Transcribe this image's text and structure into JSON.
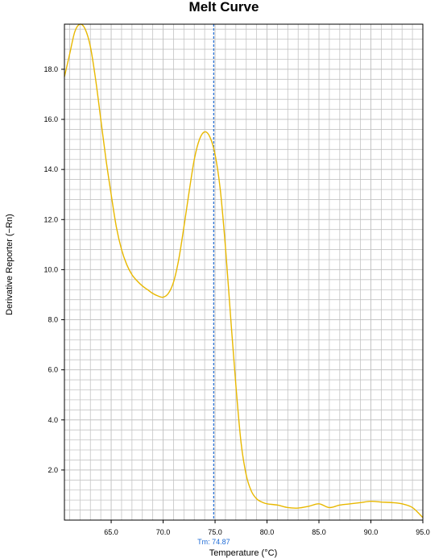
{
  "chart_data": {
    "type": "line",
    "title": "Melt Curve",
    "xlabel": "Temperature (°C)",
    "ylabel": "Derivative Reporter (−Rn)",
    "xlim": [
      60.5,
      95
    ],
    "ylim": [
      0,
      19.8
    ],
    "x_ticks": [
      "65.0",
      "70.0",
      "75.0",
      "80.0",
      "85.0",
      "90.0",
      "95.0"
    ],
    "y_ticks": [
      "2.0",
      "4.0",
      "6.0",
      "8.0",
      "10.0",
      "12.0",
      "14.0",
      "16.0",
      "18.0"
    ],
    "grid": true,
    "marker_line": {
      "x": 74.87,
      "label": "Tm: 74.87"
    },
    "colors": {
      "curve": "#e8b800",
      "marker": "#1e6bd6",
      "grid": "#c4c4c4",
      "plot_bg": "#ffffff"
    },
    "series": [
      {
        "x": [
          60.5,
          61.0,
          61.5,
          62.0,
          62.5,
          63.0,
          63.5,
          64.0,
          64.5,
          65.0,
          65.5,
          66.0,
          66.5,
          67.0,
          67.5,
          68.0,
          68.5,
          69.0,
          69.5,
          70.0,
          70.5,
          71.0,
          71.5,
          72.0,
          72.5,
          73.0,
          73.5,
          74.0,
          74.5,
          75.0,
          75.5,
          76.0,
          76.5,
          77.0,
          77.5,
          78.0,
          78.5,
          79.0,
          79.5,
          80.0,
          81.0,
          82.0,
          83.0,
          84.0,
          85.0,
          86.0,
          87.0,
          88.0,
          89.0,
          90.0,
          91.0,
          92.0,
          93.0,
          94.0,
          95.0
        ],
        "y": [
          17.7,
          18.6,
          19.5,
          19.8,
          19.6,
          18.9,
          17.6,
          16.0,
          14.4,
          13.0,
          11.7,
          10.8,
          10.2,
          9.8,
          9.55,
          9.35,
          9.2,
          9.05,
          8.95,
          8.9,
          9.05,
          9.5,
          10.4,
          11.7,
          13.1,
          14.4,
          15.2,
          15.5,
          15.3,
          14.6,
          13.2,
          10.9,
          8.1,
          5.4,
          3.1,
          1.8,
          1.15,
          0.85,
          0.72,
          0.65,
          0.6,
          0.5,
          0.48,
          0.55,
          0.65,
          0.5,
          0.6,
          0.65,
          0.7,
          0.75,
          0.72,
          0.7,
          0.65,
          0.5,
          0.1
        ]
      }
    ]
  }
}
